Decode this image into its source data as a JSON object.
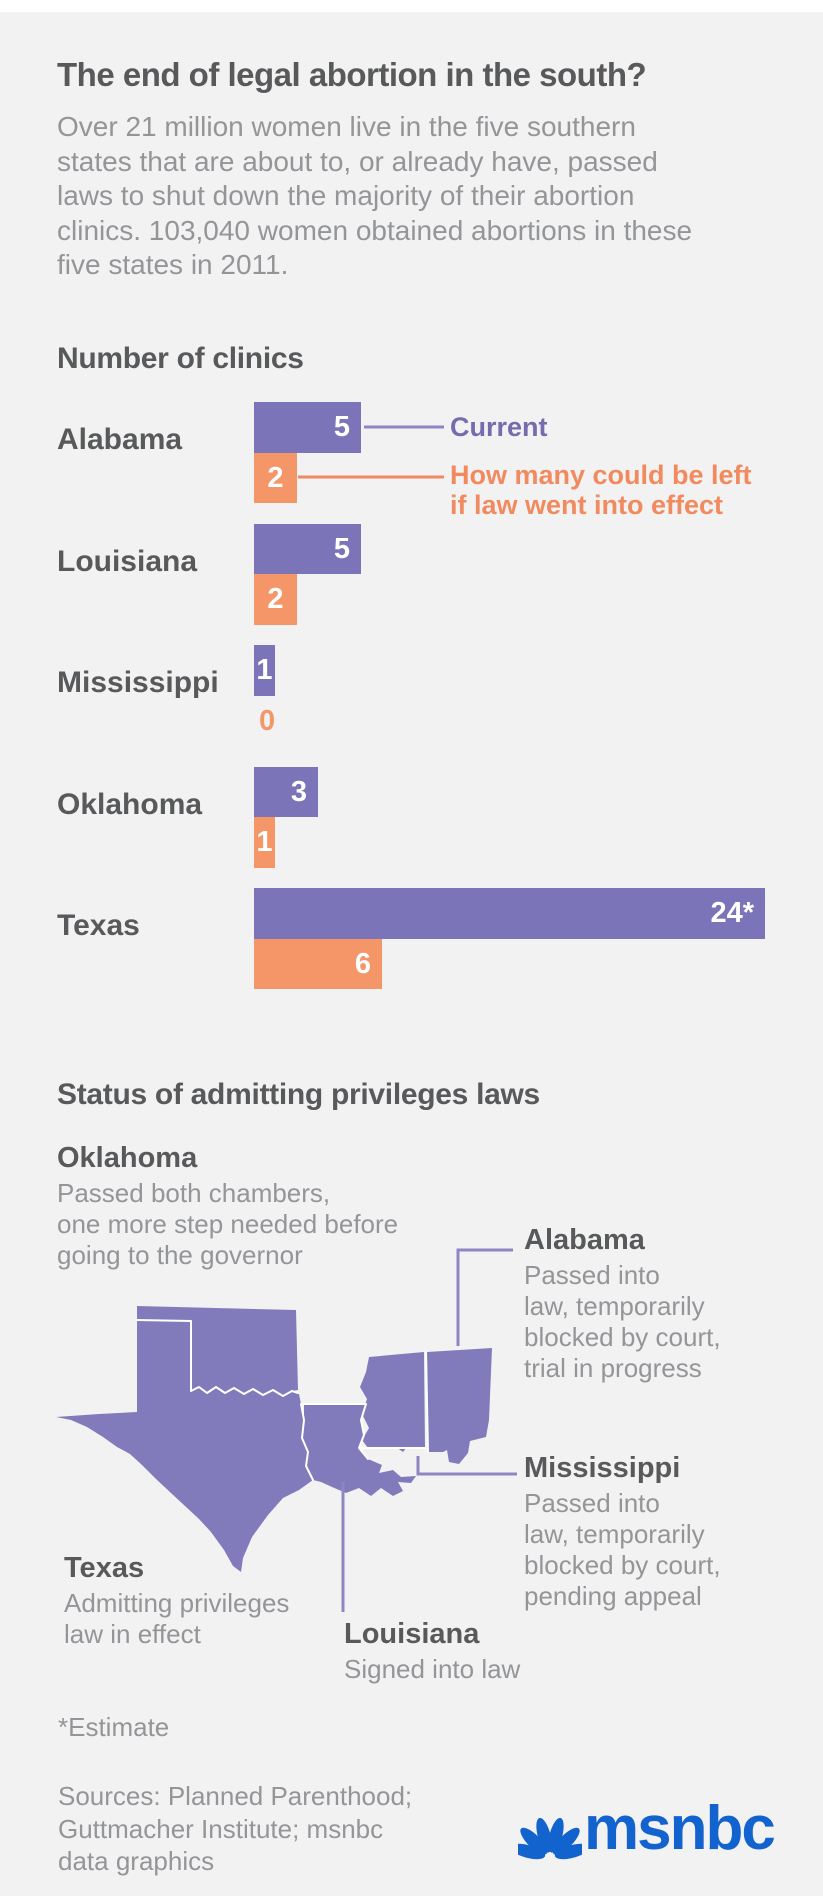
{
  "page": {
    "title": "The end of legal abortion in the south?",
    "subtitle_lines": [
      "Over 21 million women live in the five southern",
      "states that are about to, or already have, passed",
      "laws to shut down the majority of their abortion",
      "clinics. 103,040 women obtained abortions in these",
      "five states in 2011."
    ]
  },
  "chart": {
    "heading": "Number of clinics",
    "legend": {
      "current_label": "Current",
      "projected_label_lines": [
        "How many could be left",
        "if law went into effect"
      ]
    }
  },
  "chart_data": {
    "type": "bar",
    "title": "Number of clinics",
    "orientation": "horizontal",
    "categories": [
      "Alabama",
      "Louisiana",
      "Mississippi",
      "Oklahoma",
      "Texas"
    ],
    "series": [
      {
        "name": "Current",
        "values": [
          5,
          5,
          1,
          3,
          24
        ],
        "display_labels": [
          "5",
          "5",
          "1",
          "3",
          "24*"
        ],
        "color": "#7B74B9"
      },
      {
        "name": "How many could be left if law went into effect",
        "values": [
          2,
          2,
          0,
          1,
          6
        ],
        "display_labels": [
          "2",
          "2",
          "0",
          "1",
          "6"
        ],
        "color": "#F49668"
      }
    ],
    "value_axis_hidden": true,
    "note": "*Estimate"
  },
  "map_section": {
    "heading": "Status of admitting privileges laws",
    "annotations": {
      "oklahoma": {
        "state": "Oklahoma",
        "lines": [
          "Passed both chambers,",
          "one more step needed before",
          "going to the governor"
        ]
      },
      "alabama": {
        "state": "Alabama",
        "lines": [
          "Passed into",
          "law, temporarily",
          "blocked by court,",
          "trial in progress"
        ]
      },
      "mississippi": {
        "state": "Mississippi",
        "lines": [
          "Passed into",
          "law, temporarily",
          "blocked by court,",
          "pending appeal"
        ]
      },
      "texas": {
        "state": "Texas",
        "lines": [
          "Admitting privileges",
          "law in effect"
        ]
      },
      "louisiana": {
        "state": "Louisiana",
        "lines": [
          "Signed into law"
        ]
      }
    },
    "map_states": [
      "Texas",
      "Oklahoma",
      "Louisiana",
      "Mississippi",
      "Alabama"
    ]
  },
  "footer": {
    "estimate_note": "*Estimate",
    "source_lines": [
      "Sources: Planned Parenthood;",
      "Guttmacher Institute; msnbc",
      "data graphics"
    ],
    "brand": "msnbc"
  },
  "colors": {
    "background": "#F3F2F2",
    "top_strip": "#FFFFFF",
    "heading_text": "#58595B",
    "body_text": "#939598",
    "bar_current": "#7B74B9",
    "bar_projected": "#F49668",
    "legend_current_text": "#756BAE",
    "legend_projected_text": "#F18B5F",
    "bar_value_text": "#FFFFFF",
    "map_fill": "#817BBC",
    "map_border": "#FFFFFF",
    "leader_line": "#8D86C3",
    "brand_blue": "#1363CF"
  }
}
